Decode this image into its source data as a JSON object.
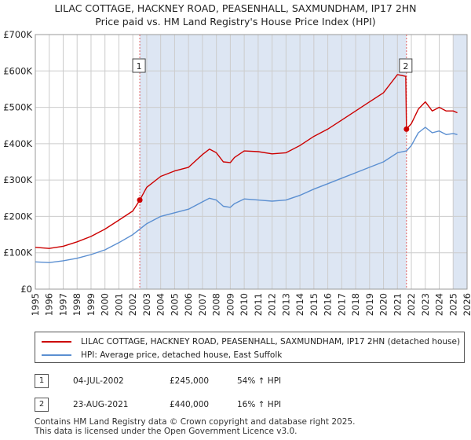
{
  "title_line1": "LILAC COTTAGE, HACKNEY ROAD, PEASENHALL, SAXMUNDHAM, IP17 2HN",
  "title_line2": "Price paid vs. HM Land Registry's House Price Index (HPI)",
  "colors": {
    "property": "#cc0000",
    "hpi": "#5b8fd1",
    "shade": "#dde6f3",
    "grid": "#cccccc"
  },
  "legend": {
    "property_label": "LILAC COTTAGE, HACKNEY ROAD, PEASENHALL, SAXMUNDHAM, IP17 2HN (detached house)",
    "hpi_label": "HPI: Average price, detached house, East Suffolk"
  },
  "sales": [
    {
      "num": "1",
      "date": "04-JUL-2002",
      "price": "£245,000",
      "hpi": "54% ↑ HPI",
      "year": 2002.5,
      "value": 245000
    },
    {
      "num": "2",
      "date": "23-AUG-2021",
      "price": "£440,000",
      "hpi": "16% ↑ HPI",
      "year": 2021.65,
      "value": 440000
    }
  ],
  "footer": {
    "line1": "Contains HM Land Registry data © Crown copyright and database right 2025.",
    "line2": "This data is licensed under the Open Government Licence v3.0."
  },
  "chart_data": {
    "type": "line",
    "title": "Price paid vs. HM Land Registry's House Price Index (HPI)",
    "xlabel": "",
    "ylabel": "",
    "xlim": [
      1995,
      2026
    ],
    "ylim": [
      0,
      700000
    ],
    "yticks": [
      0,
      100000,
      200000,
      300000,
      400000,
      500000,
      600000,
      700000
    ],
    "ytick_labels": [
      "£0",
      "£100K",
      "£200K",
      "£300K",
      "£400K",
      "£500K",
      "£600K",
      "£700K"
    ],
    "xticks": [
      "1995",
      "1996",
      "1997",
      "1998",
      "1999",
      "2000",
      "2001",
      "2002",
      "2003",
      "2004",
      "2005",
      "2006",
      "2007",
      "2008",
      "2009",
      "2010",
      "2011",
      "2012",
      "2013",
      "2014",
      "2015",
      "2016",
      "2017",
      "2018",
      "2019",
      "2020",
      "2021",
      "2022",
      "2023",
      "2024",
      "2025",
      "2026"
    ],
    "shaded_ranges": [
      [
        2002.5,
        2021.65
      ],
      [
        2025.0,
        2026.0
      ]
    ],
    "series": [
      {
        "name": "LILAC COTTAGE, HACKNEY ROAD, PEASENHALL, SAXMUNDHAM, IP17 2HN (detached house)",
        "x": [
          1995,
          1996,
          1997,
          1998,
          1999,
          2000,
          2001,
          2002,
          2002.5,
          2003,
          2004,
          2005,
          2006,
          2007,
          2007.5,
          2008,
          2008.5,
          2009,
          2009.3,
          2010,
          2011,
          2012,
          2013,
          2014,
          2015,
          2016,
          2017,
          2018,
          2019,
          2020,
          2020.5,
          2021,
          2021.6,
          2021.65,
          2022,
          2022.5,
          2023,
          2023.5,
          2024,
          2024.5,
          2025,
          2025.3
        ],
        "values": [
          115000,
          112000,
          118000,
          130000,
          145000,
          165000,
          190000,
          215000,
          245000,
          280000,
          310000,
          325000,
          335000,
          370000,
          385000,
          375000,
          350000,
          348000,
          362000,
          380000,
          378000,
          372000,
          375000,
          395000,
          420000,
          440000,
          465000,
          490000,
          515000,
          540000,
          565000,
          590000,
          585000,
          440000,
          455000,
          495000,
          515000,
          490000,
          500000,
          490000,
          490000,
          485000
        ]
      },
      {
        "name": "HPI: Average price, detached house, East Suffolk",
        "x": [
          1995,
          1996,
          1997,
          1998,
          1999,
          2000,
          2001,
          2002,
          2003,
          2004,
          2005,
          2006,
          2007,
          2007.5,
          2008,
          2008.5,
          2009,
          2009.3,
          2010,
          2011,
          2012,
          2013,
          2014,
          2015,
          2016,
          2017,
          2018,
          2019,
          2020,
          2021,
          2021.65,
          2022,
          2022.5,
          2023,
          2023.5,
          2024,
          2024.5,
          2025,
          2025.3
        ],
        "values": [
          75000,
          73000,
          78000,
          85000,
          95000,
          108000,
          128000,
          150000,
          180000,
          200000,
          210000,
          220000,
          240000,
          250000,
          245000,
          228000,
          225000,
          235000,
          248000,
          245000,
          242000,
          245000,
          258000,
          275000,
          290000,
          305000,
          320000,
          335000,
          350000,
          375000,
          380000,
          395000,
          430000,
          445000,
          430000,
          435000,
          425000,
          428000,
          425000
        ]
      }
    ]
  }
}
